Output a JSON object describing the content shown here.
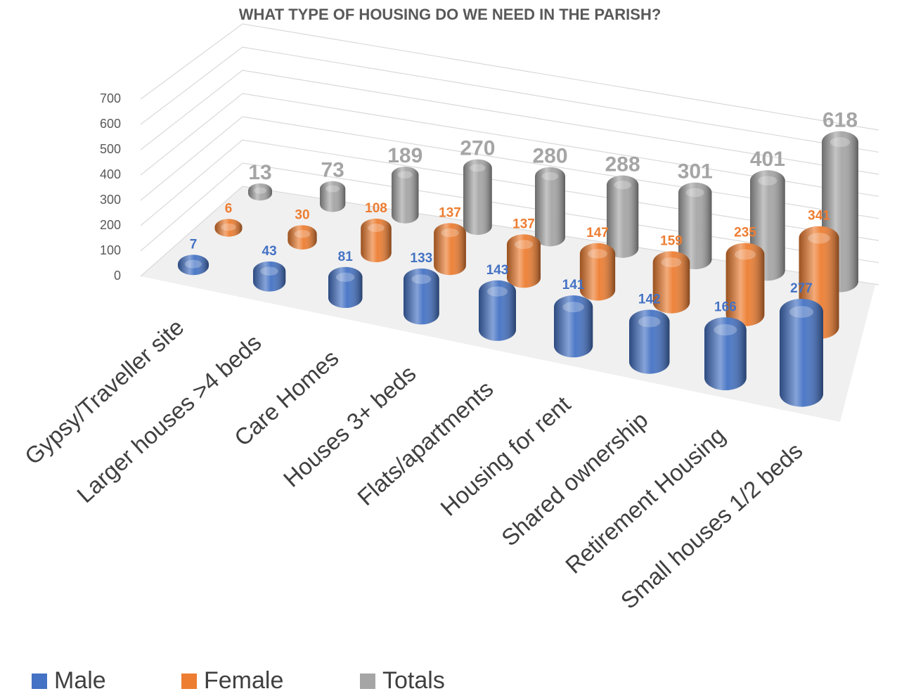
{
  "chart_data": {
    "type": "bar3d",
    "title": "WHAT TYPE OF HOUSING DO WE NEED IN THE PARISH?",
    "categories": [
      "Gypsy/Traveller site",
      "Larger houses >4 beds",
      "Care Homes",
      "Houses  3+ beds",
      "Flats/apartments",
      "Housing for rent",
      "Shared ownership",
      "Retirement Housing",
      "Small houses 1/2 beds"
    ],
    "series": [
      {
        "name": "Male",
        "color": "#4472c4",
        "values": [
          7,
          43,
          81,
          133,
          143,
          141,
          142,
          166,
          277
        ]
      },
      {
        "name": "Female",
        "color": "#ed7d31",
        "values": [
          6,
          30,
          108,
          137,
          137,
          147,
          159,
          235,
          341
        ]
      },
      {
        "name": "Totals",
        "color": "#a5a5a5",
        "values": [
          13,
          73,
          189,
          270,
          280,
          288,
          301,
          401,
          618
        ]
      }
    ],
    "ylim": [
      0,
      700
    ],
    "yticks": [
      0,
      100,
      200,
      300,
      400,
      500,
      600,
      700
    ],
    "grid": true,
    "legend": "bottom"
  }
}
